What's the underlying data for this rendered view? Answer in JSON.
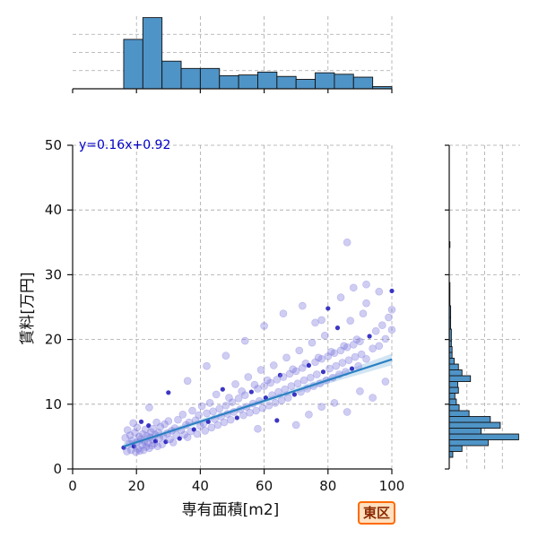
{
  "badge": {
    "label": "東区"
  },
  "chart_data": {
    "type": "scatter",
    "xlabel": "専有面積[m2]",
    "ylabel": "賃料[万円]",
    "xlim": [
      0,
      100
    ],
    "ylim": [
      0,
      50
    ],
    "x_ticks": [
      0,
      20,
      40,
      60,
      80,
      100
    ],
    "y_ticks": [
      0,
      10,
      20,
      30,
      40,
      50
    ],
    "grid": true,
    "regression": {
      "equation": "y=0.16x+0.92",
      "slope": 0.16,
      "intercept": 0.92,
      "x_range": [
        16,
        100
      ]
    },
    "series": [
      {
        "values": [
          [
            16,
            3.3
          ],
          [
            16.5,
            4.8
          ],
          [
            17,
            2.7
          ],
          [
            17.2,
            6.0
          ],
          [
            17.8,
            3.9
          ],
          [
            18,
            5.2
          ],
          [
            18.3,
            2.9
          ],
          [
            18.6,
            4.4
          ],
          [
            19,
            7.1
          ],
          [
            19.2,
            3.5
          ],
          [
            19.5,
            5.6
          ],
          [
            19.8,
            2.6
          ],
          [
            20,
            4.1
          ],
          [
            20.2,
            6.4
          ],
          [
            20.5,
            3.1
          ],
          [
            20.8,
            5.0
          ],
          [
            21,
            2.8
          ],
          [
            21.2,
            4.6
          ],
          [
            21.5,
            7.3
          ],
          [
            21.8,
            3.7
          ],
          [
            22,
            5.4
          ],
          [
            22.2,
            2.9
          ],
          [
            22.5,
            4.2
          ],
          [
            22.8,
            6.1
          ],
          [
            23,
            3.4
          ],
          [
            23.2,
            5.1
          ],
          [
            23.5,
            4.0
          ],
          [
            23.8,
            6.7
          ],
          [
            24,
            3.2
          ],
          [
            24.2,
            4.9
          ],
          [
            24.5,
            5.7
          ],
          [
            24.8,
            3.6
          ],
          [
            25,
            4.5
          ],
          [
            25.2,
            6.2
          ],
          [
            25.5,
            3.9
          ],
          [
            25.8,
            5.3
          ],
          [
            26,
            4.3
          ],
          [
            26.3,
            7.2
          ],
          [
            26.6,
            3.5
          ],
          [
            26.9,
            5.6
          ],
          [
            27.2,
            4.8
          ],
          [
            27.5,
            6.5
          ],
          [
            28,
            3.8
          ],
          [
            28.4,
            5.0
          ],
          [
            28.8,
            6.9
          ],
          [
            29.2,
            4.2
          ],
          [
            29.6,
            5.5
          ],
          [
            30,
            7.4
          ],
          [
            30.5,
            4.6
          ],
          [
            31,
            5.9
          ],
          [
            31.5,
            4.1
          ],
          [
            32,
            6.3
          ],
          [
            32.5,
            5.2
          ],
          [
            33,
            7.6
          ],
          [
            33.5,
            4.7
          ],
          [
            34,
            6.0
          ],
          [
            34.5,
            8.4
          ],
          [
            35,
            5.3
          ],
          [
            35.5,
            6.8
          ],
          [
            36,
            4.9
          ],
          [
            36.5,
            7.2
          ],
          [
            37,
            5.8
          ],
          [
            37.5,
            9.0
          ],
          [
            38,
            6.1
          ],
          [
            38.5,
            7.5
          ],
          [
            39,
            5.4
          ],
          [
            39.5,
            8.3
          ],
          [
            40,
            6.6
          ],
          [
            40.5,
            9.7
          ],
          [
            41,
            7.0
          ],
          [
            41.5,
            5.9
          ],
          [
            42,
            8.6
          ],
          [
            42.5,
            7.3
          ],
          [
            43,
            10.2
          ],
          [
            43.5,
            6.4
          ],
          [
            44,
            8.9
          ],
          [
            44.5,
            7.7
          ],
          [
            45,
            11.5
          ],
          [
            45.5,
            6.8
          ],
          [
            46,
            9.3
          ],
          [
            46.5,
            8.1
          ],
          [
            47,
            12.3
          ],
          [
            47.5,
            7.2
          ],
          [
            48,
            9.8
          ],
          [
            48.5,
            8.5
          ],
          [
            49,
            11.0
          ],
          [
            49.5,
            7.6
          ],
          [
            50,
            10.3
          ],
          [
            50.5,
            8.8
          ],
          [
            51,
            13.1
          ],
          [
            51.5,
            7.9
          ],
          [
            52,
            10.9
          ],
          [
            52.5,
            9.2
          ],
          [
            53,
            12.0
          ],
          [
            53.5,
            8.3
          ],
          [
            54,
            11.4
          ],
          [
            54.5,
            9.6
          ],
          [
            55,
            14.2
          ],
          [
            55.5,
            8.7
          ],
          [
            56,
            11.9
          ],
          [
            56.5,
            10.1
          ],
          [
            57,
            13.0
          ],
          [
            57.5,
            9.0
          ],
          [
            58,
            12.4
          ],
          [
            58.5,
            10.5
          ],
          [
            59,
            15.3
          ],
          [
            59.5,
            9.4
          ],
          [
            60,
            12.8
          ],
          [
            60.5,
            11.0
          ],
          [
            61,
            13.7
          ],
          [
            61.5,
            9.8
          ],
          [
            62,
            13.3
          ],
          [
            62.5,
            11.4
          ],
          [
            63,
            16.0
          ],
          [
            63.5,
            10.2
          ],
          [
            64,
            13.8
          ],
          [
            64.5,
            11.9
          ],
          [
            65,
            14.5
          ],
          [
            65.5,
            10.6
          ],
          [
            66,
            14.2
          ],
          [
            66.5,
            12.3
          ],
          [
            67,
            17.2
          ],
          [
            67.5,
            11.0
          ],
          [
            68,
            14.7
          ],
          [
            68.5,
            12.8
          ],
          [
            69,
            15.4
          ],
          [
            69.5,
            11.5
          ],
          [
            70,
            15.1
          ],
          [
            70.5,
            13.2
          ],
          [
            71,
            18.3
          ],
          [
            71.5,
            11.9
          ],
          [
            72,
            15.6
          ],
          [
            72.5,
            13.7
          ],
          [
            73,
            16.3
          ],
          [
            73.5,
            12.4
          ],
          [
            74,
            16.0
          ],
          [
            74.5,
            14.1
          ],
          [
            75,
            19.5
          ],
          [
            75.5,
            12.8
          ],
          [
            76,
            16.5
          ],
          [
            76.5,
            14.6
          ],
          [
            77,
            17.2
          ],
          [
            77.5,
            13.2
          ],
          [
            78,
            17.0
          ],
          [
            78.5,
            15.0
          ],
          [
            79,
            20.6
          ],
          [
            79.5,
            13.7
          ],
          [
            80,
            17.4
          ],
          [
            80.5,
            15.5
          ],
          [
            81,
            18.1
          ],
          [
            81.5,
            14.1
          ],
          [
            82,
            17.9
          ],
          [
            82.5,
            15.9
          ],
          [
            83,
            21.8
          ],
          [
            83.5,
            14.6
          ],
          [
            84,
            18.3
          ],
          [
            84.5,
            16.4
          ],
          [
            85,
            19.0
          ],
          [
            85.5,
            15.0
          ],
          [
            86,
            18.8
          ],
          [
            86.5,
            16.8
          ],
          [
            87,
            22.9
          ],
          [
            87.5,
            15.5
          ],
          [
            88,
            19.2
          ],
          [
            88.5,
            17.3
          ],
          [
            89,
            20.0
          ],
          [
            89.5,
            15.9
          ],
          [
            90,
            19.7
          ],
          [
            90.5,
            17.7
          ],
          [
            91,
            24.0
          ],
          [
            92,
            17.0
          ],
          [
            93,
            20.5
          ],
          [
            94,
            18.6
          ],
          [
            95,
            21.3
          ],
          [
            96,
            19.0
          ],
          [
            97,
            22.2
          ],
          [
            98,
            20.1
          ],
          [
            99,
            23.4
          ],
          [
            100,
            21.5
          ],
          [
            24,
            9.5
          ],
          [
            30,
            11.8
          ],
          [
            36,
            13.6
          ],
          [
            42,
            15.9
          ],
          [
            48,
            17.5
          ],
          [
            54,
            19.8
          ],
          [
            60,
            22.1
          ],
          [
            66,
            24.0
          ],
          [
            72,
            25.2
          ],
          [
            76,
            22.6
          ],
          [
            80,
            24.8
          ],
          [
            84,
            26.5
          ],
          [
            88,
            28.0
          ],
          [
            92,
            25.6
          ],
          [
            96,
            27.4
          ],
          [
            100,
            24.6
          ],
          [
            86,
            35.0
          ],
          [
            78,
            23.0
          ],
          [
            92,
            28.5
          ],
          [
            100,
            27.5
          ],
          [
            70,
            6.8
          ],
          [
            74,
            8.4
          ],
          [
            78,
            9.6
          ],
          [
            82,
            10.2
          ],
          [
            86,
            8.8
          ],
          [
            90,
            12.0
          ],
          [
            94,
            11.0
          ],
          [
            98,
            13.5
          ],
          [
            64,
            7.5
          ],
          [
            58,
            6.2
          ]
        ]
      }
    ],
    "x_hist": {
      "ylim": [
        0,
        1.0
      ],
      "bins": [
        {
          "x0": 16,
          "x1": 22,
          "count": 0.68
        },
        {
          "x0": 22,
          "x1": 28,
          "count": 0.98
        },
        {
          "x0": 28,
          "x1": 34,
          "count": 0.38
        },
        {
          "x0": 34,
          "x1": 40,
          "count": 0.28
        },
        {
          "x0": 40,
          "x1": 46,
          "count": 0.28
        },
        {
          "x0": 46,
          "x1": 52,
          "count": 0.18
        },
        {
          "x0": 52,
          "x1": 58,
          "count": 0.19
        },
        {
          "x0": 58,
          "x1": 64,
          "count": 0.23
        },
        {
          "x0": 64,
          "x1": 70,
          "count": 0.17
        },
        {
          "x0": 70,
          "x1": 76,
          "count": 0.13
        },
        {
          "x0": 76,
          "x1": 82,
          "count": 0.22
        },
        {
          "x0": 82,
          "x1": 88,
          "count": 0.2
        },
        {
          "x0": 88,
          "x1": 94,
          "count": 0.16
        },
        {
          "x0": 94,
          "x1": 100,
          "count": 0.03
        }
      ]
    },
    "y_hist": {
      "xlim": [
        0,
        1.0
      ],
      "bins": [
        {
          "y0": 1.8,
          "y1": 2.7,
          "count": 0.05
        },
        {
          "y0": 2.7,
          "y1": 3.6,
          "count": 0.18
        },
        {
          "y0": 3.6,
          "y1": 4.5,
          "count": 0.55
        },
        {
          "y0": 4.5,
          "y1": 5.4,
          "count": 0.98
        },
        {
          "y0": 5.4,
          "y1": 6.3,
          "count": 0.45
        },
        {
          "y0": 6.3,
          "y1": 7.2,
          "count": 0.72
        },
        {
          "y0": 7.2,
          "y1": 8.1,
          "count": 0.58
        },
        {
          "y0": 8.1,
          "y1": 9.0,
          "count": 0.28
        },
        {
          "y0": 9.0,
          "y1": 9.9,
          "count": 0.14
        },
        {
          "y0": 9.9,
          "y1": 10.8,
          "count": 0.1
        },
        {
          "y0": 10.8,
          "y1": 11.7,
          "count": 0.08
        },
        {
          "y0": 11.7,
          "y1": 12.6,
          "count": 0.13
        },
        {
          "y0": 12.6,
          "y1": 13.5,
          "count": 0.12
        },
        {
          "y0": 13.5,
          "y1": 14.4,
          "count": 0.3
        },
        {
          "y0": 14.4,
          "y1": 15.3,
          "count": 0.18
        },
        {
          "y0": 15.3,
          "y1": 16.2,
          "count": 0.13
        },
        {
          "y0": 16.2,
          "y1": 17.1,
          "count": 0.07
        },
        {
          "y0": 17.1,
          "y1": 18.0,
          "count": 0.04
        },
        {
          "y0": 18.0,
          "y1": 18.9,
          "count": 0.04
        },
        {
          "y0": 18.9,
          "y1": 19.8,
          "count": 0.03
        },
        {
          "y0": 19.8,
          "y1": 21.6,
          "count": 0.03
        },
        {
          "y0": 21.6,
          "y1": 23.4,
          "count": 0.02
        },
        {
          "y0": 23.4,
          "y1": 25.2,
          "count": 0.02
        },
        {
          "y0": 25.2,
          "y1": 28.8,
          "count": 0.01
        },
        {
          "y0": 34.2,
          "y1": 35.1,
          "count": 0.01
        }
      ]
    }
  }
}
